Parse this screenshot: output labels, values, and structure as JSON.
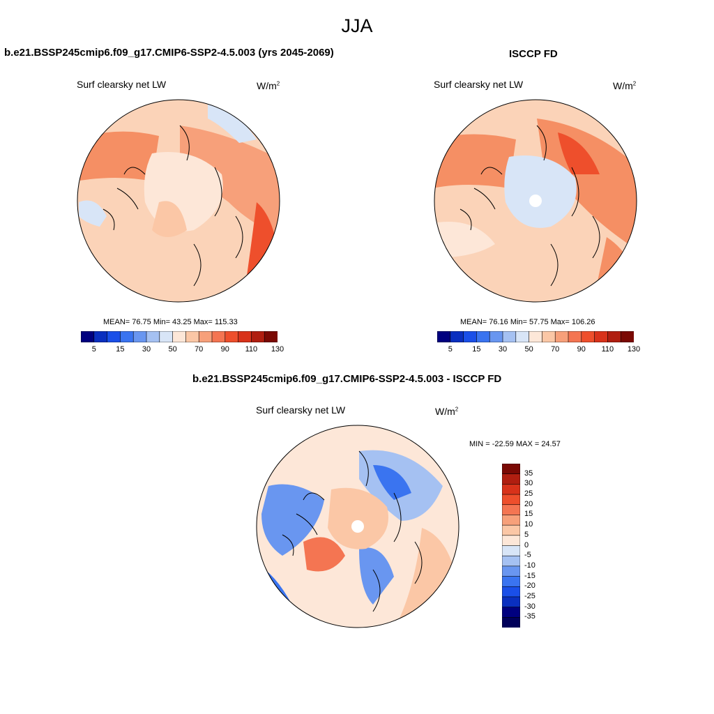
{
  "page_title": "JJA",
  "chart_data": [
    {
      "type": "heatmap",
      "projection": "north polar stereographic",
      "title": "b.e21.BSSP245cmip6.f09_g17.CMIP6-SSP2-4.5.003 (yrs 2045-2069)",
      "variable_label": "Surf clearsky net LW",
      "units": "W/m",
      "units_sup": "2",
      "stats_text": "MEAN=  76.75  Min=  43.25  Max= 115.33",
      "mean": 76.75,
      "min": 43.25,
      "max": 115.33,
      "colorbar": {
        "orientation": "horizontal",
        "tick_labels": [
          "5",
          "15",
          "30",
          "50",
          "70",
          "90",
          "110",
          "130"
        ],
        "colors": [
          "#00007f",
          "#0a2fbf",
          "#1a4fe8",
          "#3a74f0",
          "#6996f0",
          "#a5c1f2",
          "#d8e5f7",
          "#fde7d8",
          "#fbc7a6",
          "#f7a07a",
          "#f47552",
          "#ee4f2c",
          "#d8321a",
          "#b01e10",
          "#7a0904"
        ]
      }
    },
    {
      "type": "heatmap",
      "projection": "north polar stereographic",
      "title": "ISCCP FD",
      "variable_label": "Surf clearsky net LW",
      "units": "W/m",
      "units_sup": "2",
      "stats_text": "MEAN=  76.16  Min=  57.75  Max= 106.26",
      "mean": 76.16,
      "min": 57.75,
      "max": 106.26,
      "colorbar": {
        "orientation": "horizontal",
        "tick_labels": [
          "5",
          "15",
          "30",
          "50",
          "70",
          "90",
          "110",
          "130"
        ],
        "colors": [
          "#00007f",
          "#0a2fbf",
          "#1a4fe8",
          "#3a74f0",
          "#6996f0",
          "#a5c1f2",
          "#d8e5f7",
          "#fde7d8",
          "#fbc7a6",
          "#f7a07a",
          "#f47552",
          "#ee4f2c",
          "#d8321a",
          "#b01e10",
          "#7a0904"
        ]
      }
    },
    {
      "type": "heatmap",
      "projection": "north polar stereographic",
      "title": "b.e21.BSSP245cmip6.f09_g17.CMIP6-SSP2-4.5.003 - ISCCP FD",
      "variable_label": "Surf clearsky net LW",
      "units": "W/m",
      "units_sup": "2",
      "stats_text": "MIN = -22.59 MAX =  24.57",
      "min": -22.59,
      "max": 24.57,
      "colorbar": {
        "orientation": "vertical",
        "tick_labels": [
          "35",
          "30",
          "25",
          "20",
          "15",
          "10",
          "5",
          "0",
          "-5",
          "-10",
          "-15",
          "-20",
          "-25",
          "-30",
          "-35"
        ],
        "colors": [
          "#7a0904",
          "#b01e10",
          "#d8321a",
          "#ee4f2c",
          "#f47552",
          "#f7a07a",
          "#fbc7a6",
          "#fde7d8",
          "#d8e5f7",
          "#a5c1f2",
          "#6996f0",
          "#3a74f0",
          "#1a4fe8",
          "#0a2fbf",
          "#00007f",
          "#00005a"
        ]
      }
    }
  ]
}
